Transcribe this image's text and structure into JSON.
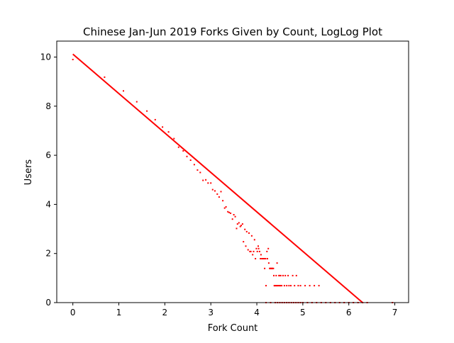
{
  "chart_data": {
    "type": "scatter",
    "title": "Chinese Jan-Jun 2019 Forks Given by Count, LogLog Plot",
    "xlabel": "Fork Count",
    "ylabel": "Users",
    "xlim": [
      -0.35,
      7.3
    ],
    "ylim": [
      0,
      10.65
    ],
    "xticks": [
      0,
      1,
      2,
      3,
      4,
      5,
      6,
      7
    ],
    "yticks": [
      0,
      2,
      4,
      6,
      8,
      10
    ],
    "xtick_labels": [
      "0",
      "1",
      "2",
      "3",
      "4",
      "5",
      "6",
      "7"
    ],
    "ytick_labels": [
      "0",
      "2",
      "4",
      "6",
      "8",
      "10"
    ],
    "grid": false,
    "color": "#ff0000",
    "fit_line": {
      "x": [
        0,
        6.3
      ],
      "y": [
        10.12,
        0
      ]
    },
    "series": [
      {
        "points": [
          [
            0,
            9.9
          ],
          [
            0.69,
            9.18
          ],
          [
            1.1,
            8.62
          ],
          [
            1.39,
            8.18
          ],
          [
            1.61,
            7.8
          ],
          [
            1.79,
            7.45
          ],
          [
            1.95,
            7.15
          ],
          [
            2.08,
            6.95
          ],
          [
            2.2,
            6.68
          ],
          [
            2.3,
            6.33
          ],
          [
            2.4,
            6.18
          ],
          [
            2.48,
            5.95
          ],
          [
            2.56,
            5.8
          ],
          [
            2.64,
            5.62
          ],
          [
            2.71,
            5.4
          ],
          [
            2.77,
            5.3
          ],
          [
            2.83,
            4.98
          ],
          [
            2.89,
            5.0
          ],
          [
            2.94,
            4.87
          ],
          [
            3.0,
            4.87
          ],
          [
            3.04,
            4.6
          ],
          [
            3.09,
            4.55
          ],
          [
            3.14,
            4.42
          ],
          [
            3.18,
            4.3
          ],
          [
            3.22,
            4.52
          ],
          [
            3.26,
            4.15
          ],
          [
            3.3,
            3.85
          ],
          [
            3.33,
            3.9
          ],
          [
            3.37,
            3.7
          ],
          [
            3.4,
            3.67
          ],
          [
            3.43,
            3.64
          ],
          [
            3.47,
            3.4
          ],
          [
            3.5,
            3.58
          ],
          [
            3.53,
            3.5
          ],
          [
            3.56,
            3.02
          ],
          [
            3.58,
            3.2
          ],
          [
            3.61,
            3.25
          ],
          [
            3.64,
            3.1
          ],
          [
            3.66,
            3.14
          ],
          [
            3.69,
            3.2
          ],
          [
            3.71,
            2.48
          ],
          [
            3.74,
            2.98
          ],
          [
            3.76,
            2.3
          ],
          [
            3.78,
            2.89
          ],
          [
            3.81,
            2.15
          ],
          [
            3.83,
            2.83
          ],
          [
            3.85,
            2.08
          ],
          [
            3.87,
            2.08
          ],
          [
            3.89,
            2.72
          ],
          [
            3.91,
            1.95
          ],
          [
            3.93,
            2.08
          ],
          [
            3.95,
            2.56
          ],
          [
            3.97,
            1.79
          ],
          [
            3.99,
            2.2
          ],
          [
            4.01,
            2.08
          ],
          [
            4.03,
            2.3
          ],
          [
            4.04,
            2.2
          ],
          [
            4.06,
            2.08
          ],
          [
            4.08,
            1.79
          ],
          [
            4.09,
            1.95
          ],
          [
            4.11,
            1.79
          ],
          [
            4.13,
            1.79
          ],
          [
            4.14,
            1.79
          ],
          [
            4.16,
            1.79
          ],
          [
            4.17,
            1.39
          ],
          [
            4.19,
            1.79
          ],
          [
            4.2,
            0.69
          ],
          [
            4.22,
            2.08
          ],
          [
            4.23,
            1.79
          ],
          [
            4.25,
            2.2
          ],
          [
            4.26,
            1.61
          ],
          [
            4.28,
            1.39
          ],
          [
            4.29,
            1.39
          ],
          [
            4.3,
            1.39
          ],
          [
            4.32,
            1.39
          ],
          [
            4.33,
            1.39
          ],
          [
            4.34,
            1.39
          ],
          [
            4.36,
            1.39
          ],
          [
            4.37,
            1.1
          ],
          [
            4.38,
            0.69
          ],
          [
            4.39,
            0.69
          ],
          [
            4.41,
            0.69
          ],
          [
            4.42,
            1.1
          ],
          [
            4.43,
            0.69
          ],
          [
            4.44,
            1.61
          ],
          [
            4.45,
            0.69
          ],
          [
            4.47,
            0.69
          ],
          [
            4.48,
            1.1
          ],
          [
            4.49,
            1.1
          ],
          [
            4.5,
            0.69
          ],
          [
            4.51,
            0.69
          ],
          [
            4.52,
            1.1
          ],
          [
            4.54,
            0.69
          ],
          [
            4.57,
            1.1
          ],
          [
            4.6,
            0.69
          ],
          [
            4.62,
            1.1
          ],
          [
            4.65,
            0.69
          ],
          [
            4.68,
            1.1
          ],
          [
            4.7,
            0.69
          ],
          [
            4.74,
            0.69
          ],
          [
            4.78,
            1.1
          ],
          [
            4.82,
            0.69
          ],
          [
            4.86,
            1.1
          ],
          [
            4.9,
            0.69
          ],
          [
            4.95,
            0.69
          ],
          [
            5.05,
            0.69
          ],
          [
            5.15,
            0.69
          ],
          [
            5.25,
            0.69
          ],
          [
            5.35,
            0.69
          ],
          [
            4.2,
            0
          ],
          [
            4.3,
            0
          ],
          [
            4.4,
            0
          ],
          [
            4.45,
            0
          ],
          [
            4.5,
            0
          ],
          [
            4.55,
            0
          ],
          [
            4.6,
            0
          ],
          [
            4.65,
            0
          ],
          [
            4.7,
            0
          ],
          [
            4.75,
            0
          ],
          [
            4.8,
            0
          ],
          [
            4.85,
            0
          ],
          [
            4.9,
            0
          ],
          [
            4.95,
            0
          ],
          [
            5.0,
            0
          ],
          [
            5.1,
            0
          ],
          [
            5.2,
            0
          ],
          [
            5.3,
            0
          ],
          [
            5.4,
            0
          ],
          [
            5.5,
            0
          ],
          [
            5.6,
            0
          ],
          [
            5.7,
            0
          ],
          [
            5.8,
            0
          ],
          [
            5.9,
            0
          ],
          [
            6.0,
            0
          ],
          [
            6.1,
            0
          ],
          [
            6.2,
            0
          ],
          [
            6.3,
            0
          ],
          [
            6.4,
            0
          ],
          [
            6.95,
            0
          ]
        ]
      }
    ]
  }
}
